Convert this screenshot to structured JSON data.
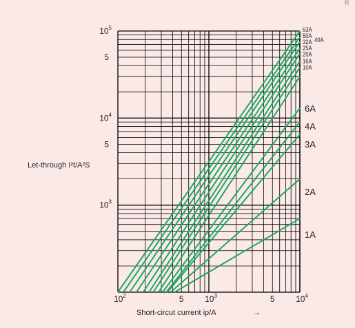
{
  "chart_data": {
    "type": "line",
    "xscale": "log",
    "yscale": "log",
    "xlim": [
      100,
      10000
    ],
    "ylim": [
      100,
      100000
    ],
    "xlabel": "Short-circut current ip/A",
    "xlabel_arrow": "→",
    "ylabel": "Let-through I²t/A²S",
    "corner_mark": "R",
    "grid": true,
    "colors": {
      "line": "#1aa760",
      "grid": "#000000",
      "background": "#fbe9e8"
    },
    "yticks": [
      {
        "value": 100000,
        "base": "10",
        "exp": "5"
      },
      {
        "value": 50000,
        "base": "5",
        "exp": ""
      },
      {
        "value": 10000,
        "base": "10",
        "exp": "4"
      },
      {
        "value": 5000,
        "base": "5",
        "exp": ""
      },
      {
        "value": 1000,
        "base": "10",
        "exp": "3"
      }
    ],
    "xticks": [
      {
        "value": 100,
        "base": "10",
        "exp": "2"
      },
      {
        "value": 500,
        "base": "5",
        "exp": ""
      },
      {
        "value": 1000,
        "base": "10",
        "exp": "3"
      },
      {
        "value": 5000,
        "base": "5",
        "exp": ""
      },
      {
        "value": 10000,
        "base": "10",
        "exp": "4"
      }
    ],
    "series": [
      {
        "name": "63A",
        "points": [
          [
            100,
            100
          ],
          [
            10000,
            100000
          ]
        ]
      },
      {
        "name": "50A",
        "points": [
          [
            115,
            100
          ],
          [
            10000,
            85000
          ]
        ]
      },
      {
        "name": "40A",
        "points": [
          [
            135,
            100
          ],
          [
            10000,
            75000
          ]
        ]
      },
      {
        "name": "32A",
        "points": [
          [
            160,
            100
          ],
          [
            10000,
            63000
          ]
        ]
      },
      {
        "name": "25A",
        "points": [
          [
            190,
            100
          ],
          [
            10000,
            55000
          ]
        ]
      },
      {
        "name": "20A",
        "points": [
          [
            220,
            100
          ],
          [
            10000,
            45000
          ]
        ]
      },
      {
        "name": "16A",
        "points": [
          [
            245,
            100
          ],
          [
            10000,
            38000
          ]
        ]
      },
      {
        "name": "10A",
        "points": [
          [
            280,
            100
          ],
          [
            10000,
            30000
          ]
        ]
      },
      {
        "name": "6A",
        "points": [
          [
            310,
            100
          ],
          [
            10000,
            13000
          ]
        ]
      },
      {
        "name": "4A",
        "points": [
          [
            340,
            100
          ],
          [
            10000,
            9000
          ]
        ]
      },
      {
        "name": "3A",
        "points": [
          [
            350,
            100
          ],
          [
            10000,
            6500
          ]
        ]
      },
      {
        "name": "2A",
        "points": [
          [
            380,
            100
          ],
          [
            10000,
            2000
          ]
        ]
      },
      {
        "name": "1A",
        "points": [
          [
            420,
            100
          ],
          [
            10000,
            700
          ]
        ]
      }
    ]
  }
}
